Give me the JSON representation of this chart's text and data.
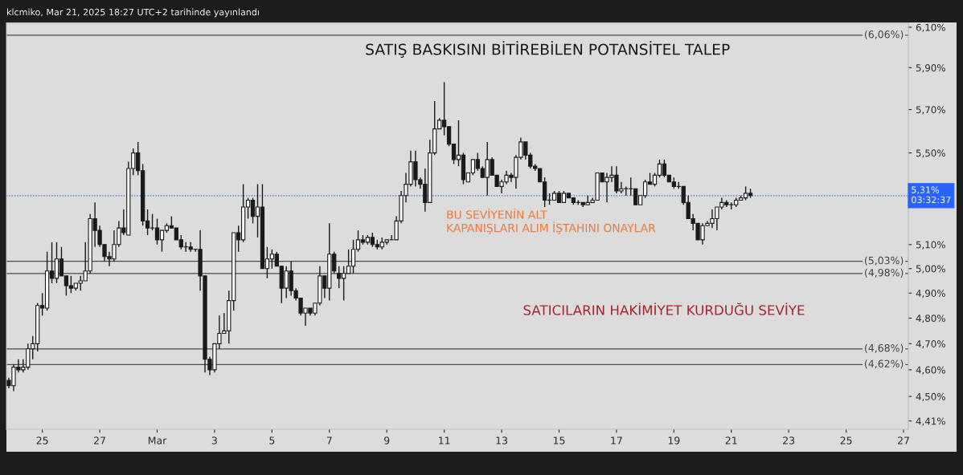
{
  "chart_data": {
    "type": "candlestick",
    "title": "SATIŞ BASKISINI BİTİREBİLEN POTANSİTEL TALEP",
    "annotations": [
      "klcmiko, Mar 21, 2025 18:27 UTC+2 tarihinde yayınlandı",
      "BU SEVİYENİN ALT\nKAPANIŞLARI ALIM İŞTAHINI ONAYLAR",
      "SATICILARIN HAKİMİYET KURDUĞU SEVİYE"
    ],
    "x": [
      "2025-02-23T20:00",
      "2025-02-24T00:00",
      "2025-02-24T04:00",
      "2025-02-24T08:00",
      "2025-02-24T12:00",
      "2025-02-24T16:00",
      "2025-02-24T20:00",
      "2025-02-25T00:00",
      "2025-02-25T04:00",
      "2025-02-25T08:00",
      "2025-02-25T12:00",
      "2025-02-25T16:00",
      "2025-02-25T20:00",
      "2025-02-26T00:00",
      "2025-02-26T04:00",
      "2025-02-26T08:00",
      "2025-02-26T12:00",
      "2025-02-26T16:00",
      "2025-02-26T20:00",
      "2025-02-27T00:00",
      "2025-02-27T04:00",
      "2025-02-27T08:00",
      "2025-02-27T12:00",
      "2025-02-27T16:00",
      "2025-02-27T20:00",
      "2025-02-28T00:00",
      "2025-02-28T04:00",
      "2025-02-28T08:00",
      "2025-02-28T12:00",
      "2025-02-28T16:00",
      "2025-02-28T20:00",
      "2025-03-01T00:00",
      "2025-03-01T04:00",
      "2025-03-01T08:00",
      "2025-03-01T12:00",
      "2025-03-01T16:00",
      "2025-03-01T20:00",
      "2025-03-02T00:00",
      "2025-03-02T04:00",
      "2025-03-02T08:00",
      "2025-03-02T12:00",
      "2025-03-02T16:00",
      "2025-03-02T20:00",
      "2025-03-03T00:00",
      "2025-03-03T04:00",
      "2025-03-03T08:00",
      "2025-03-03T12:00",
      "2025-03-03T16:00",
      "2025-03-03T20:00",
      "2025-03-04T00:00",
      "2025-03-04T04:00",
      "2025-03-04T08:00",
      "2025-03-04T12:00",
      "2025-03-04T16:00",
      "2025-03-04T20:00",
      "2025-03-05T00:00",
      "2025-03-05T04:00",
      "2025-03-05T08:00",
      "2025-03-05T12:00",
      "2025-03-05T16:00",
      "2025-03-05T20:00",
      "2025-03-06T00:00",
      "2025-03-06T04:00",
      "2025-03-06T08:00",
      "2025-03-06T12:00",
      "2025-03-06T16:00",
      "2025-03-06T20:00",
      "2025-03-07T00:00",
      "2025-03-07T04:00",
      "2025-03-07T08:00",
      "2025-03-07T12:00",
      "2025-03-07T16:00",
      "2025-03-07T20:00",
      "2025-03-08T00:00",
      "2025-03-08T04:00",
      "2025-03-08T08:00",
      "2025-03-08T12:00",
      "2025-03-08T16:00",
      "2025-03-08T20:00",
      "2025-03-09T00:00",
      "2025-03-09T04:00",
      "2025-03-09T08:00",
      "2025-03-09T12:00",
      "2025-03-09T16:00",
      "2025-03-09T20:00",
      "2025-03-10T00:00",
      "2025-03-10T04:00",
      "2025-03-10T08:00",
      "2025-03-10T12:00",
      "2025-03-10T16:00",
      "2025-03-10T20:00",
      "2025-03-11T00:00",
      "2025-03-11T04:00",
      "2025-03-11T08:00",
      "2025-03-11T12:00",
      "2025-03-11T16:00",
      "2025-03-11T20:00",
      "2025-03-12T00:00",
      "2025-03-12T04:00",
      "2025-03-12T08:00",
      "2025-03-12T12:00",
      "2025-03-12T16:00",
      "2025-03-12T20:00",
      "2025-03-13T00:00",
      "2025-03-13T04:00",
      "2025-03-13T08:00",
      "2025-03-13T12:00",
      "2025-03-13T16:00",
      "2025-03-13T20:00",
      "2025-03-14T00:00",
      "2025-03-14T04:00",
      "2025-03-14T08:00",
      "2025-03-14T12:00",
      "2025-03-14T16:00",
      "2025-03-14T20:00",
      "2025-03-15T00:00",
      "2025-03-15T04:00",
      "2025-03-15T08:00",
      "2025-03-15T12:00",
      "2025-03-15T16:00",
      "2025-03-15T20:00",
      "2025-03-16T00:00",
      "2025-03-16T04:00",
      "2025-03-16T08:00",
      "2025-03-16T12:00",
      "2025-03-16T16:00",
      "2025-03-16T20:00",
      "2025-03-17T00:00",
      "2025-03-17T04:00",
      "2025-03-17T08:00",
      "2025-03-17T12:00",
      "2025-03-17T16:00",
      "2025-03-17T20:00",
      "2025-03-18T00:00",
      "2025-03-18T04:00",
      "2025-03-18T08:00",
      "2025-03-18T12:00",
      "2025-03-18T16:00",
      "2025-03-18T20:00",
      "2025-03-19T00:00",
      "2025-03-19T04:00",
      "2025-03-19T08:00",
      "2025-03-19T12:00",
      "2025-03-19T16:00",
      "2025-03-19T20:00",
      "2025-03-20T00:00",
      "2025-03-20T04:00",
      "2025-03-20T08:00",
      "2025-03-20T12:00",
      "2025-03-20T16:00",
      "2025-03-20T20:00",
      "2025-03-21T00:00",
      "2025-03-21T04:00",
      "2025-03-21T08:00",
      "2025-03-21T12:00",
      "2025-03-21T16:00"
    ],
    "ohlc": [
      [
        4.56,
        4.57,
        4.53,
        4.54
      ],
      [
        4.54,
        4.62,
        4.52,
        4.61
      ],
      [
        4.61,
        4.64,
        4.59,
        4.6
      ],
      [
        4.6,
        4.64,
        4.59,
        4.61
      ],
      [
        4.61,
        4.7,
        4.6,
        4.68
      ],
      [
        4.68,
        4.73,
        4.64,
        4.7
      ],
      [
        4.7,
        4.86,
        4.67,
        4.85
      ],
      [
        4.85,
        4.9,
        4.81,
        4.84
      ],
      [
        4.84,
        5.07,
        4.83,
        4.99
      ],
      [
        4.99,
        5.11,
        4.94,
        4.96
      ],
      [
        4.96,
        5.11,
        4.94,
        5.04
      ],
      [
        5.04,
        5.09,
        4.97,
        4.97
      ],
      [
        4.97,
        4.97,
        4.89,
        4.93
      ],
      [
        4.93,
        4.97,
        4.9,
        4.92
      ],
      [
        4.92,
        4.94,
        4.91,
        4.94
      ],
      [
        4.94,
        4.97,
        4.91,
        4.95
      ],
      [
        4.95,
        5.11,
        4.95,
        4.99
      ],
      [
        4.99,
        5.23,
        4.98,
        5.21
      ],
      [
        5.21,
        5.28,
        5.09,
        5.16
      ],
      [
        5.16,
        5.18,
        5.09,
        5.1
      ],
      [
        5.1,
        5.1,
        5.03,
        5.05
      ],
      [
        5.05,
        5.07,
        5.01,
        5.04
      ],
      [
        5.04,
        5.16,
        5.03,
        5.1
      ],
      [
        5.1,
        5.2,
        5.09,
        5.17
      ],
      [
        5.17,
        5.25,
        5.14,
        5.15
      ],
      [
        5.14,
        5.46,
        5.14,
        5.43
      ],
      [
        5.43,
        5.52,
        5.4,
        5.5
      ],
      [
        5.5,
        5.55,
        5.4,
        5.42
      ],
      [
        5.42,
        5.45,
        5.18,
        5.2
      ],
      [
        5.2,
        5.25,
        5.14,
        5.17
      ],
      [
        5.17,
        5.23,
        5.16,
        5.17
      ],
      [
        5.17,
        5.21,
        5.1,
        5.12
      ],
      [
        5.12,
        5.16,
        5.07,
        5.16
      ],
      [
        5.16,
        5.19,
        5.15,
        5.18
      ],
      [
        5.18,
        5.22,
        5.17,
        5.17
      ],
      [
        5.17,
        5.17,
        5.12,
        5.12
      ],
      [
        5.12,
        5.14,
        5.08,
        5.09
      ],
      [
        5.09,
        5.11,
        5.07,
        5.09
      ],
      [
        5.09,
        5.11,
        5.07,
        5.08
      ],
      [
        5.08,
        5.08,
        5.07,
        5.08
      ],
      [
        5.08,
        5.16,
        4.91,
        4.97
      ],
      [
        4.97,
        4.97,
        4.59,
        4.64
      ],
      [
        4.64,
        4.65,
        4.58,
        4.6
      ],
      [
        4.6,
        4.7,
        4.59,
        4.7
      ],
      [
        4.7,
        4.81,
        4.68,
        4.74
      ],
      [
        4.74,
        4.82,
        4.74,
        4.75
      ],
      [
        4.75,
        4.91,
        4.7,
        4.87
      ],
      [
        4.87,
        5.15,
        4.83,
        5.15
      ],
      [
        5.15,
        5.18,
        5.07,
        5.12
      ],
      [
        5.12,
        5.36,
        5.11,
        5.26
      ],
      [
        5.26,
        5.3,
        5.21,
        5.29
      ],
      [
        5.29,
        5.3,
        5.19,
        5.22
      ],
      [
        5.22,
        5.36,
        5.13,
        5.26
      ],
      [
        5.26,
        5.36,
        5.0,
        5.0
      ],
      [
        5.0,
        5.09,
        4.96,
        5.04
      ],
      [
        5.04,
        5.08,
        5.0,
        5.06
      ],
      [
        5.06,
        5.07,
        5.01,
        5.01
      ],
      [
        5.01,
        5.01,
        4.86,
        4.92
      ],
      [
        4.92,
        5.01,
        4.88,
        4.99
      ],
      [
        4.99,
        5.03,
        4.89,
        4.91
      ],
      [
        4.91,
        4.92,
        4.87,
        4.88
      ],
      [
        4.88,
        4.88,
        4.81,
        4.82
      ],
      [
        4.82,
        4.84,
        4.77,
        4.84
      ],
      [
        4.84,
        4.84,
        4.81,
        4.82
      ],
      [
        4.82,
        4.86,
        4.81,
        4.86
      ],
      [
        4.86,
        5.01,
        4.85,
        4.97
      ],
      [
        4.97,
        4.97,
        4.88,
        4.92
      ],
      [
        4.92,
        5.19,
        4.87,
        5.06
      ],
      [
        5.06,
        5.07,
        4.98,
        4.99
      ],
      [
        4.98,
        5.01,
        4.92,
        4.96
      ],
      [
        4.96,
        5.01,
        4.87,
        4.98
      ],
      [
        4.98,
        5.08,
        4.98,
        5.01
      ],
      [
        5.01,
        5.12,
        4.98,
        5.08
      ],
      [
        5.08,
        5.16,
        5.07,
        5.12
      ],
      [
        5.12,
        5.14,
        5.1,
        5.11
      ],
      [
        5.11,
        5.14,
        5.1,
        5.13
      ],
      [
        5.13,
        5.15,
        5.09,
        5.1
      ],
      [
        5.1,
        5.12,
        5.08,
        5.09
      ],
      [
        5.09,
        5.13,
        5.08,
        5.11
      ],
      [
        5.11,
        5.12,
        5.1,
        5.12
      ],
      [
        5.12,
        5.14,
        5.12,
        5.12
      ],
      [
        5.12,
        5.22,
        5.12,
        5.2
      ],
      [
        5.2,
        5.33,
        5.19,
        5.31
      ],
      [
        5.31,
        5.41,
        5.28,
        5.36
      ],
      [
        5.36,
        5.51,
        5.35,
        5.46
      ],
      [
        5.46,
        5.51,
        5.35,
        5.38
      ],
      [
        5.38,
        5.39,
        5.34,
        5.36
      ],
      [
        5.36,
        5.43,
        5.24,
        5.28
      ],
      [
        5.28,
        5.56,
        5.28,
        5.5
      ],
      [
        5.5,
        5.74,
        5.49,
        5.61
      ],
      [
        5.61,
        5.66,
        5.61,
        5.65
      ],
      [
        5.65,
        5.83,
        5.58,
        5.62
      ],
      [
        5.62,
        5.62,
        5.53,
        5.54
      ],
      [
        5.54,
        5.54,
        5.45,
        5.47
      ],
      [
        5.47,
        5.65,
        5.44,
        5.49
      ],
      [
        5.49,
        5.5,
        5.36,
        5.38
      ],
      [
        5.37,
        5.41,
        5.37,
        5.41
      ],
      [
        5.41,
        5.47,
        5.4,
        5.47
      ],
      [
        5.47,
        5.5,
        5.42,
        5.43
      ],
      [
        5.43,
        5.44,
        5.39,
        5.39
      ],
      [
        5.39,
        5.55,
        5.31,
        5.47
      ],
      [
        5.47,
        5.48,
        5.4,
        5.4
      ],
      [
        5.4,
        5.4,
        5.35,
        5.35
      ],
      [
        5.35,
        5.38,
        5.32,
        5.37
      ],
      [
        5.37,
        5.42,
        5.36,
        5.4
      ],
      [
        5.4,
        5.41,
        5.37,
        5.39
      ],
      [
        5.39,
        5.49,
        5.34,
        5.48
      ],
      [
        5.48,
        5.57,
        5.47,
        5.55
      ],
      [
        5.55,
        5.55,
        5.47,
        5.49
      ],
      [
        5.49,
        5.5,
        5.43,
        5.44
      ],
      [
        5.44,
        5.45,
        5.42,
        5.43
      ],
      [
        5.43,
        5.43,
        5.37,
        5.37
      ],
      [
        5.37,
        5.39,
        5.26,
        5.29
      ],
      [
        5.29,
        5.32,
        5.27,
        5.29
      ],
      [
        5.29,
        5.33,
        5.29,
        5.32
      ],
      [
        5.32,
        5.33,
        5.28,
        5.28
      ],
      [
        5.28,
        5.33,
        5.28,
        5.32
      ],
      [
        5.32,
        5.32,
        5.3,
        5.3
      ],
      [
        5.3,
        5.3,
        5.27,
        5.28
      ],
      [
        5.28,
        5.29,
        5.27,
        5.28
      ],
      [
        5.28,
        5.28,
        5.26,
        5.27
      ],
      [
        5.27,
        5.31,
        5.27,
        5.28
      ],
      [
        5.28,
        5.3,
        5.28,
        5.29
      ],
      [
        5.29,
        5.41,
        5.29,
        5.41
      ],
      [
        5.41,
        5.41,
        5.37,
        5.37
      ],
      [
        5.37,
        5.41,
        5.28,
        5.39
      ],
      [
        5.39,
        5.44,
        5.37,
        5.4
      ],
      [
        5.4,
        5.44,
        5.32,
        5.33
      ],
      [
        5.33,
        5.37,
        5.32,
        5.34
      ],
      [
        5.34,
        5.35,
        5.31,
        5.34
      ],
      [
        5.34,
        5.39,
        5.31,
        5.34
      ],
      [
        5.34,
        5.34,
        5.27,
        5.27
      ],
      [
        5.27,
        5.31,
        5.27,
        5.31
      ],
      [
        5.31,
        5.38,
        5.3,
        5.37
      ],
      [
        5.37,
        5.41,
        5.36,
        5.36
      ],
      [
        5.36,
        5.41,
        5.35,
        5.4
      ],
      [
        5.4,
        5.47,
        5.39,
        5.45
      ],
      [
        5.45,
        5.47,
        5.39,
        5.4
      ],
      [
        5.4,
        5.4,
        5.37,
        5.37
      ],
      [
        5.37,
        5.39,
        5.34,
        5.35
      ],
      [
        5.35,
        5.37,
        5.34,
        5.35
      ],
      [
        5.35,
        5.35,
        5.27,
        5.28
      ],
      [
        5.28,
        5.31,
        5.21,
        5.21
      ],
      [
        5.21,
        5.23,
        5.16,
        5.19
      ],
      [
        5.19,
        5.19,
        5.12,
        5.12
      ],
      [
        5.12,
        5.19,
        5.1,
        5.18
      ],
      [
        5.18,
        5.2,
        5.18,
        5.19
      ],
      [
        5.19,
        5.25,
        5.17,
        5.21
      ],
      [
        5.21,
        5.26,
        5.16,
        5.26
      ],
      [
        5.26,
        5.3,
        5.25,
        5.28
      ],
      [
        5.28,
        5.29,
        5.26,
        5.27
      ],
      [
        5.27,
        5.28,
        5.25,
        5.27
      ],
      [
        5.27,
        5.3,
        5.26,
        5.29
      ],
      [
        5.29,
        5.31,
        5.29,
        5.3
      ],
      [
        5.3,
        5.35,
        5.29,
        5.32
      ],
      [
        5.32,
        5.34,
        5.3,
        5.31
      ]
    ],
    "xlim": [
      "2025-02-23T18:00",
      "2025-03-27T04:00"
    ],
    "xticks": [
      {
        "value": "2025-02-25",
        "label": "25"
      },
      {
        "value": "2025-02-27",
        "label": "27"
      },
      {
        "value": "2025-03-01",
        "label": "Mar"
      },
      {
        "value": "2025-03-03",
        "label": "3"
      },
      {
        "value": "2025-03-05",
        "label": "5"
      },
      {
        "value": "2025-03-07",
        "label": "7"
      },
      {
        "value": "2025-03-09",
        "label": "9"
      },
      {
        "value": "2025-03-11",
        "label": "11"
      },
      {
        "value": "2025-03-13",
        "label": "13"
      },
      {
        "value": "2025-03-15",
        "label": "15"
      },
      {
        "value": "2025-03-17",
        "label": "17"
      },
      {
        "value": "2025-03-19",
        "label": "19"
      },
      {
        "value": "2025-03-21",
        "label": "21"
      },
      {
        "value": "2025-03-23",
        "label": "23"
      },
      {
        "value": "2025-03-25",
        "label": "25"
      },
      {
        "value": "2025-03-27",
        "label": "27"
      }
    ],
    "log": true,
    "ylim": [
      4.38,
      6.12
    ],
    "yticks": [
      {
        "value": 4.41,
        "label": "4,41%"
      },
      {
        "value": 4.5,
        "label": "4,50%"
      },
      {
        "value": 4.6,
        "label": "4,60%"
      },
      {
        "value": 4.7,
        "label": "4,70%"
      },
      {
        "value": 4.8,
        "label": "4,80%"
      },
      {
        "value": 4.9,
        "label": "4,90%"
      },
      {
        "value": 5.0,
        "label": "5,00%"
      },
      {
        "value": 5.1,
        "label": "5,10%"
      },
      {
        "value": 5.5,
        "label": "5,50%"
      },
      {
        "value": 5.7,
        "label": "5,70%"
      },
      {
        "value": 5.9,
        "label": "5,90%"
      },
      {
        "value": 6.1,
        "label": "6,10%"
      }
    ],
    "ref_lines": [
      {
        "axis": "y",
        "value": 6.06,
        "label": "(6,06%)",
        "color": "#4a4a4a",
        "line_style": "solid"
      },
      {
        "axis": "y",
        "value": 5.03,
        "label": "(5,03%)",
        "color": "#4a4a4a",
        "line_style": "solid"
      },
      {
        "axis": "y",
        "value": 4.98,
        "label": "(4,98%)",
        "color": "#4a4a4a",
        "line_style": "solid"
      },
      {
        "axis": "y",
        "value": 4.68,
        "label": "(4,68%)",
        "color": "#4a4a4a",
        "line_style": "solid"
      },
      {
        "axis": "y",
        "value": 4.62,
        "label": "(4,62%)",
        "color": "#4a4a4a",
        "line_style": "solid"
      },
      {
        "axis": "y",
        "value": 5.31,
        "label": "5,31%\n03:32:37",
        "color": "#2962ff",
        "line_style": "dotted"
      }
    ]
  }
}
